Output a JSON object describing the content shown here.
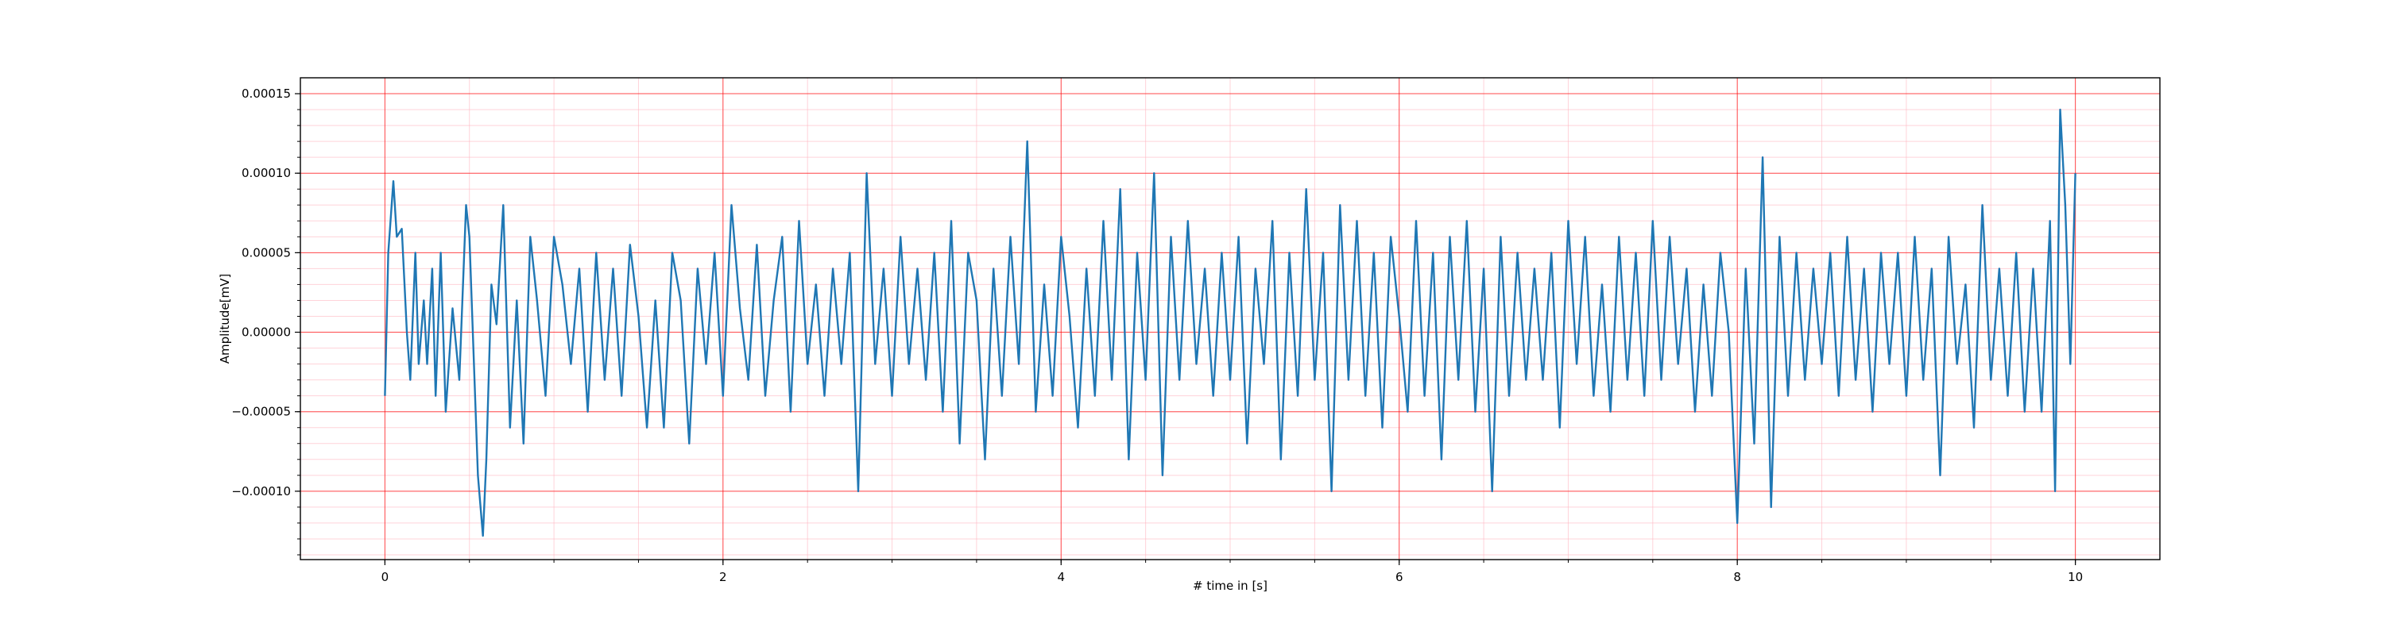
{
  "chart_data": {
    "type": "line",
    "title": "",
    "xlabel": "# time in [s]",
    "ylabel": "Amplitude[mV]",
    "xlim": [
      -0.5,
      10.5
    ],
    "ylim": [
      -0.000143,
      0.00016
    ],
    "x_ticks": [
      0,
      2,
      4,
      6,
      8,
      10
    ],
    "x_tick_labels": [
      "0",
      "2",
      "4",
      "6",
      "8",
      "10"
    ],
    "y_ticks": [
      -0.0001,
      -5e-05,
      0.0,
      5e-05,
      0.0001,
      0.00015
    ],
    "y_tick_labels": [
      "−0.00010",
      "−0.00005",
      "0.00000",
      "0.00005",
      "0.00010",
      "0.00015"
    ],
    "grid": {
      "major": true,
      "minor": true,
      "major_color": "#ff0000",
      "minor_color": "#ffb6c1"
    },
    "legend": "none",
    "colors": {
      "line": "#1f77b4",
      "axes": "#000000"
    },
    "series": [
      {
        "x": [
          0,
          0.02,
          0.05,
          0.07,
          0.1,
          0.13,
          0.15,
          0.18,
          0.2,
          0.23,
          0.25,
          0.28,
          0.3,
          0.33,
          0.36,
          0.4,
          0.44,
          0.48,
          0.5,
          0.55,
          0.58,
          0.6,
          0.63,
          0.66,
          0.7,
          0.74,
          0.78,
          0.82,
          0.86,
          0.9,
          0.95,
          1.0,
          1.05,
          1.1,
          1.15,
          1.2,
          1.25,
          1.3,
          1.35,
          1.4,
          1.45,
          1.5,
          1.55,
          1.6,
          1.65,
          1.7,
          1.75,
          1.8,
          1.85,
          1.9,
          1.95,
          2.0,
          2.05,
          2.1,
          2.15,
          2.2,
          2.25,
          2.3,
          2.35,
          2.4,
          2.45,
          2.5,
          2.55,
          2.6,
          2.65,
          2.7,
          2.75,
          2.8,
          2.85,
          2.9,
          2.95,
          3.0,
          3.05,
          3.1,
          3.15,
          3.2,
          3.25,
          3.3,
          3.35,
          3.4,
          3.45,
          3.5,
          3.55,
          3.6,
          3.65,
          3.7,
          3.75,
          3.8,
          3.85,
          3.9,
          3.95,
          4.0,
          4.05,
          4.1,
          4.15,
          4.2,
          4.25,
          4.3,
          4.35,
          4.4,
          4.45,
          4.5,
          4.55,
          4.6,
          4.65,
          4.7,
          4.75,
          4.8,
          4.85,
          4.9,
          4.95,
          5.0,
          5.05,
          5.1,
          5.15,
          5.2,
          5.25,
          5.3,
          5.35,
          5.4,
          5.45,
          5.5,
          5.55,
          5.6,
          5.65,
          5.7,
          5.75,
          5.8,
          5.85,
          5.9,
          5.95,
          6.0,
          6.05,
          6.1,
          6.15,
          6.2,
          6.25,
          6.3,
          6.35,
          6.4,
          6.45,
          6.5,
          6.55,
          6.6,
          6.65,
          6.7,
          6.75,
          6.8,
          6.85,
          6.9,
          6.95,
          7.0,
          7.05,
          7.1,
          7.15,
          7.2,
          7.25,
          7.3,
          7.35,
          7.4,
          7.45,
          7.5,
          7.55,
          7.6,
          7.65,
          7.7,
          7.75,
          7.8,
          7.85,
          7.9,
          7.95,
          8.0,
          8.05,
          8.1,
          8.15,
          8.2,
          8.25,
          8.3,
          8.35,
          8.4,
          8.45,
          8.5,
          8.55,
          8.6,
          8.65,
          8.7,
          8.75,
          8.8,
          8.85,
          8.9,
          8.95,
          9.0,
          9.05,
          9.1,
          9.15,
          9.2,
          9.25,
          9.3,
          9.35,
          9.4,
          9.45,
          9.5,
          9.55,
          9.6,
          9.65,
          9.7,
          9.75,
          9.8,
          9.85,
          9.88,
          9.91,
          9.94,
          9.97,
          10.0
        ],
        "y": [
          -4e-05,
          5e-05,
          9.5e-05,
          6e-05,
          6.5e-05,
          0.0,
          -3e-05,
          5e-05,
          -2e-05,
          2e-05,
          -2e-05,
          4e-05,
          -4e-05,
          5e-05,
          -5e-05,
          1.5e-05,
          -3e-05,
          8e-05,
          6e-05,
          -9e-05,
          -0.000128,
          -8e-05,
          3e-05,
          5e-06,
          8e-05,
          -6e-05,
          2e-05,
          -7e-05,
          6e-05,
          2e-05,
          -4e-05,
          6e-05,
          3e-05,
          -2e-05,
          4e-05,
          -5e-05,
          5e-05,
          -3e-05,
          4e-05,
          -4e-05,
          5.5e-05,
          1e-05,
          -6e-05,
          2e-05,
          -6e-05,
          5e-05,
          2e-05,
          -7e-05,
          4e-05,
          -2e-05,
          5e-05,
          -4e-05,
          8e-05,
          1.5e-05,
          -3e-05,
          5.5e-05,
          -4e-05,
          2e-05,
          6e-05,
          -5e-05,
          7e-05,
          -2e-05,
          3e-05,
          -4e-05,
          4e-05,
          -2e-05,
          5e-05,
          -0.0001,
          0.0001,
          -2e-05,
          4e-05,
          -4e-05,
          6e-05,
          -2e-05,
          4e-05,
          -3e-05,
          5e-05,
          -5e-05,
          7e-05,
          -7e-05,
          5e-05,
          2e-05,
          -8e-05,
          4e-05,
          -4e-05,
          6e-05,
          -2e-05,
          0.00012,
          -5e-05,
          3e-05,
          -4e-05,
          6e-05,
          1e-05,
          -6e-05,
          4e-05,
          -4e-05,
          7e-05,
          -3e-05,
          9e-05,
          -8e-05,
          5e-05,
          -3e-05,
          0.0001,
          -9e-05,
          6e-05,
          -3e-05,
          7e-05,
          -2e-05,
          4e-05,
          -4e-05,
          5e-05,
          -3e-05,
          6e-05,
          -7e-05,
          4e-05,
          -2e-05,
          7e-05,
          -8e-05,
          5e-05,
          -4e-05,
          9e-05,
          -3e-05,
          5e-05,
          -0.0001,
          8e-05,
          -3e-05,
          7e-05,
          -4e-05,
          5e-05,
          -6e-05,
          6e-05,
          1e-05,
          -5e-05,
          7e-05,
          -4e-05,
          5e-05,
          -8e-05,
          6e-05,
          -3e-05,
          7e-05,
          -5e-05,
          4e-05,
          -0.0001,
          6e-05,
          -4e-05,
          5e-05,
          -3e-05,
          4e-05,
          -3e-05,
          5e-05,
          -6e-05,
          7e-05,
          -2e-05,
          6e-05,
          -4e-05,
          3e-05,
          -5e-05,
          6e-05,
          -3e-05,
          5e-05,
          -4e-05,
          7e-05,
          -3e-05,
          6e-05,
          -2e-05,
          4e-05,
          -5e-05,
          3e-05,
          -4e-05,
          5e-05,
          0.0,
          -0.00012,
          4e-05,
          -7e-05,
          0.00011,
          -0.00011,
          6e-05,
          -4e-05,
          5e-05,
          -3e-05,
          4e-05,
          -2e-05,
          5e-05,
          -4e-05,
          6e-05,
          -3e-05,
          4e-05,
          -5e-05,
          5e-05,
          -2e-05,
          5e-05,
          -4e-05,
          6e-05,
          -3e-05,
          4e-05,
          -9e-05,
          6e-05,
          -2e-05,
          3e-05,
          -6e-05,
          8e-05,
          -3e-05,
          4e-05,
          -4e-05,
          5e-05,
          -5e-05,
          4e-05,
          -5e-05,
          7e-05,
          -0.0001,
          0.00014,
          8e-05,
          -2e-05,
          0.0001
        ]
      }
    ]
  }
}
